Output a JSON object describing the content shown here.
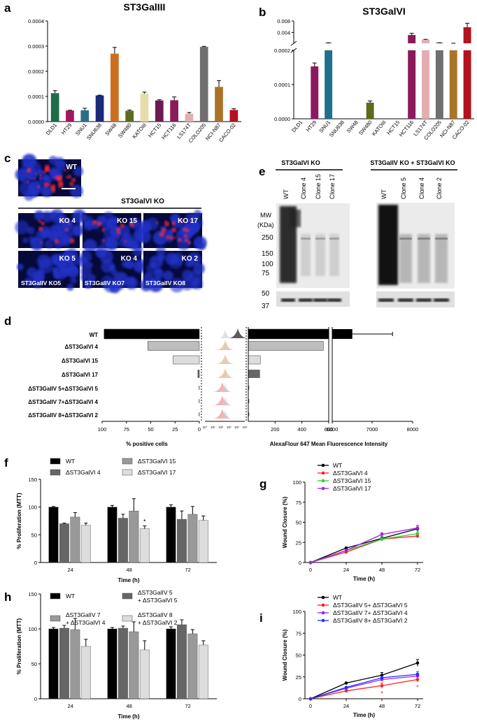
{
  "panels": {
    "a": {
      "letter": "a",
      "title": "ST3GalIII"
    },
    "b": {
      "letter": "b",
      "title": "ST3GalVI"
    },
    "c": {
      "letter": "c",
      "header": "ST3GalVI KO",
      "images": [
        "WT",
        "KO 4",
        "KO 15",
        "KO 17",
        "KO 5",
        "KO 4",
        "KO 2",
        "ST3GalIV KO5",
        "ST3GalIV KO7",
        "ST3GalIV KO8"
      ]
    },
    "d": {
      "letter": "d",
      "xlabel_left": "% positive cells",
      "xlabel_right": "AlexaFlour 647 Mean Fluorescence Intensity"
    },
    "e": {
      "letter": "e",
      "header_left": "ST3GalVI KO",
      "header_right": "ST3GalIV KO + ST3GalVI KO",
      "lanes_left": [
        "WT",
        "Clone 4",
        "Clone 15",
        "Clone 17"
      ],
      "lanes_right": [
        "WT",
        "Clone 5",
        "Clone 4",
        "Clone 2"
      ],
      "mw_label": "MW",
      "mw_unit": "(KDa)",
      "markers": [
        "250",
        "150",
        "100",
        "75",
        "50",
        "37"
      ]
    },
    "f": {
      "letter": "f"
    },
    "g": {
      "letter": "g"
    },
    "h": {
      "letter": "h"
    },
    "i": {
      "letter": "i"
    }
  },
  "colors": {
    "wt_black": "#000000",
    "grey_dark": "#555555",
    "grey_mid": "#9e9e9e",
    "grey_light": "#dddddd",
    "red": "#ff2020",
    "green": "#2ecc40",
    "purple": "#a020f0",
    "blue": "#2030ff"
  },
  "chart_data": [
    {
      "id": "a",
      "type": "bar",
      "title": "ST3GalIII",
      "xlabel": "",
      "ylabel": "",
      "categories": [
        "DLD1",
        "HT29",
        "SNU1",
        "SNU638",
        "SW48",
        "SW480",
        "KATOIII",
        "HCT15",
        "HCT116",
        "LS174T",
        "COLO205",
        "NCI-N87",
        "CACO-02"
      ],
      "values": [
        0.000113,
        4.4e-05,
        4.5e-05,
        0.000104,
        0.00027,
        4.3e-05,
        0.000111,
        8.4e-05,
        8.5e-05,
        3.1e-05,
        0.000297,
        0.000138,
        4.6e-05
      ],
      "errors": [
        1e-05,
        1e-06,
        8e-06,
        1e-06,
        2.5e-05,
        3e-06,
        6e-06,
        3e-06,
        1.3e-05,
        5e-06,
        2e-06,
        2.5e-05,
        5e-06
      ],
      "colors": [
        "#1f6b4a",
        "#a3175f",
        "#2a6f8a",
        "#1c2a7a",
        "#cc6e1d",
        "#5c6b1c",
        "#e6dcaa",
        "#6e1854",
        "#8b1a5a",
        "#e3aeb0",
        "#6f6f6f",
        "#a9742a",
        "#b3121e"
      ],
      "ylim": [
        0,
        0.0004
      ],
      "yticks": [
        "0.0000",
        "0.0001",
        "0.0002",
        "0.0003",
        "0.0004"
      ]
    },
    {
      "id": "b",
      "type": "bar",
      "title": "ST3GalVI",
      "xlabel": "",
      "ylabel": "",
      "categories": [
        "DLD1",
        "HT29",
        "SNU1",
        "SNU638",
        "SW48",
        "SW480",
        "KATOIII",
        "HCT15",
        "HCT116",
        "LS174T",
        "COLO205",
        "NCI-N87",
        "CACO-02"
      ],
      "values": [
        0,
        0.000153,
        0.00033,
        0,
        0,
        4.7e-05,
        0,
        0,
        0.0031,
        0.0015,
        0.0004,
        0.00022,
        0.0058
      ],
      "errors": [
        0,
        1e-05,
        5e-05,
        0,
        0,
        5e-06,
        0,
        0,
        0.0006,
        0.0001,
        1e-05,
        1e-05,
        0.0014
      ],
      "colors": [
        "#1f6b4a",
        "#8e1860",
        "#1f6f8f",
        "#1c2a7a",
        "#cc6e1d",
        "#5c6b1c",
        "#e6dcaa",
        "#6e1854",
        "#8b1a5a",
        "#e3aeb0",
        "#6f6f6f",
        "#a9742a",
        "#b3121e"
      ],
      "axis_break": true,
      "ylim_lower": [
        0,
        0.0002
      ],
      "ylim_upper": [
        0.0002,
        0.008
      ],
      "yticks_lower": [
        "0.0000",
        "0.0001",
        "0.0002"
      ],
      "yticks_upper": [
        "0.004",
        "0.008"
      ]
    },
    {
      "id": "d",
      "type": "bar",
      "orientation": "horizontal",
      "categories": [
        "WT",
        "ΔST3GalVI 4",
        "ΔST3GalVI 15",
        "ΔST3GalVI 17",
        "ΔST3GalIV 5+ΔST3GalVI 5",
        "ΔST3GalIV 7+ΔST3GalVI 4",
        "ΔST3GalIV 8+ΔST3GalVI 2"
      ],
      "series": [
        {
          "name": "% positive cells",
          "values": [
            98,
            53,
            27,
            1.5,
            0.3,
            0.3,
            0.3
          ],
          "errors": [
            0,
            1,
            0.5,
            0.2,
            0,
            0,
            0
          ]
        },
        {
          "name": "AlexaFlour 647 Mean Fluorescence Intensity",
          "values": [
            6500,
            560,
            90,
            85,
            5,
            5,
            5
          ],
          "errors": [
            1000,
            5,
            5,
            25,
            0,
            0,
            0
          ]
        }
      ],
      "colors": [
        "#000000",
        "#bdbdbd",
        "#dddddd",
        "#666666",
        "#888888",
        "#888888",
        "#888888"
      ],
      "xticks_left": [
        "100",
        "75",
        "50",
        "25",
        "0"
      ],
      "xticks_right": [
        "200",
        "400",
        "600",
        "6000",
        "7000",
        "8000"
      ],
      "histogram_ticks": [
        "10°",
        "10¹",
        "10²",
        "10³",
        "10⁴",
        "10⁵"
      ],
      "xlabel_left": "% positive cells",
      "xlabel_right": "AlexaFlour 647 Mean Fluorescence Intensity"
    },
    {
      "id": "f",
      "type": "bar",
      "xlabel": "Time (h)",
      "ylabel": "% Proliferation (MTT)",
      "categories": [
        "24",
        "48",
        "72"
      ],
      "series": [
        {
          "name": "WT",
          "values": [
            100,
            100,
            100
          ],
          "errors": [
            1,
            3,
            4
          ]
        },
        {
          "name": "ΔST3GalVI 4",
          "values": [
            70,
            80,
            78
          ],
          "errors": [
            1,
            7,
            15
          ]
        },
        {
          "name": "ΔST3GalVI 15",
          "values": [
            82,
            93,
            87
          ],
          "errors": [
            8,
            22,
            14
          ]
        },
        {
          "name": "ΔST3GalVI 17",
          "values": [
            67,
            61,
            76
          ],
          "errors": [
            4,
            5,
            8
          ]
        }
      ],
      "colors": [
        "#000000",
        "#666666",
        "#999999",
        "#dddddd"
      ],
      "annotations": [
        {
          "category": "48",
          "series": "ΔST3GalVI 17",
          "text": "*"
        }
      ],
      "ylim": [
        0,
        150
      ],
      "yticks": [
        "0",
        "50",
        "100",
        "150"
      ]
    },
    {
      "id": "g",
      "type": "line",
      "xlabel": "Time (h)",
      "ylabel": "Wound Closure (%)",
      "x": [
        0,
        24,
        48,
        72
      ],
      "series": [
        {
          "name": "WT",
          "values": [
            0,
            18,
            30,
            42
          ],
          "errors": [
            0,
            1,
            2,
            4
          ]
        },
        {
          "name": "ΔST3GalVI 4",
          "values": [
            0,
            13,
            29,
            33
          ],
          "errors": [
            0,
            1,
            2,
            2
          ]
        },
        {
          "name": "ΔST3GalVI 15",
          "values": [
            0,
            15,
            29,
            36
          ],
          "errors": [
            0,
            1,
            2,
            3
          ]
        },
        {
          "name": "ΔST3GalVI 17",
          "values": [
            0,
            15,
            35,
            43
          ],
          "errors": [
            0,
            1,
            2,
            3
          ]
        }
      ],
      "colors": [
        "#000000",
        "#ff2020",
        "#2ecc40",
        "#a020f0"
      ],
      "xticks": [
        "0",
        "24",
        "48",
        "72"
      ],
      "ylim": [
        0,
        100
      ],
      "yticks": [
        "0",
        "25",
        "50",
        "75",
        "100"
      ]
    },
    {
      "id": "h",
      "type": "bar",
      "xlabel": "Time (h)",
      "ylabel": "% Proliferation (MTT)",
      "categories": [
        "24",
        "48",
        "72"
      ],
      "series": [
        {
          "name": "WT",
          "values": [
            100,
            100,
            100
          ],
          "errors": [
            2,
            2,
            3
          ]
        },
        {
          "name": "ΔST3GalIV 5 + ΔST3GalVI 5",
          "values": [
            101,
            101,
            106
          ],
          "errors": [
            4,
            3,
            7
          ]
        },
        {
          "name": "ΔST3GalIV 7 + ΔST3GalVI 4",
          "values": [
            99,
            96,
            93
          ],
          "errors": [
            16,
            14,
            6
          ]
        },
        {
          "name": "ΔST3GalIV 8 + ΔST3GalVI 2",
          "values": [
            75,
            70,
            77
          ],
          "errors": [
            10,
            13,
            6
          ]
        }
      ],
      "legend_labels": [
        [
          "WT"
        ],
        [
          "ΔST3GalIV 5",
          "+ ΔST3GalVI 5"
        ],
        [
          "ΔST3GalIV 7",
          "+ ΔST3GalVI 4"
        ],
        [
          "ΔST3GalIV 8",
          "+ ΔST3GalVI 2"
        ]
      ],
      "colors": [
        "#000000",
        "#666666",
        "#999999",
        "#dddddd"
      ],
      "ylim": [
        0,
        150
      ],
      "yticks": [
        "0",
        "50",
        "100",
        "150"
      ]
    },
    {
      "id": "i",
      "type": "line",
      "xlabel": "Time (h)",
      "ylabel": "Wound Closure (%)",
      "x": [
        0,
        24,
        48,
        72
      ],
      "series": [
        {
          "name": "WT",
          "values": [
            0,
            18,
            27,
            41
          ],
          "errors": [
            0,
            1,
            3,
            4
          ]
        },
        {
          "name": "ΔST3GalIV 5+ ΔST3GalVI 5",
          "values": [
            0,
            9,
            15,
            22
          ],
          "errors": [
            0,
            1,
            3,
            3
          ]
        },
        {
          "name": "ΔST3GalIV 7+ ΔST3GalVI 4",
          "values": [
            0,
            12,
            22,
            26
          ],
          "errors": [
            0,
            1,
            2,
            3
          ]
        },
        {
          "name": "ΔST3GalIV 8+ ΔST3GalVI 2",
          "values": [
            0,
            13,
            24,
            28
          ],
          "errors": [
            0,
            1,
            2,
            3
          ]
        }
      ],
      "colors": [
        "#000000",
        "#ff2020",
        "#a020f0",
        "#2030ff"
      ],
      "annotations": [
        {
          "x": 48,
          "series": "ΔST3GalIV 5+ ΔST3GalVI 5",
          "text": "*"
        },
        {
          "x": 72,
          "series": "ΔST3GalIV 5+ ΔST3GalVI 5",
          "text": "*"
        }
      ],
      "xticks": [
        "0",
        "24",
        "48",
        "72"
      ],
      "ylim": [
        0,
        100
      ],
      "yticks": [
        "0",
        "25",
        "50",
        "75",
        "100"
      ]
    }
  ]
}
